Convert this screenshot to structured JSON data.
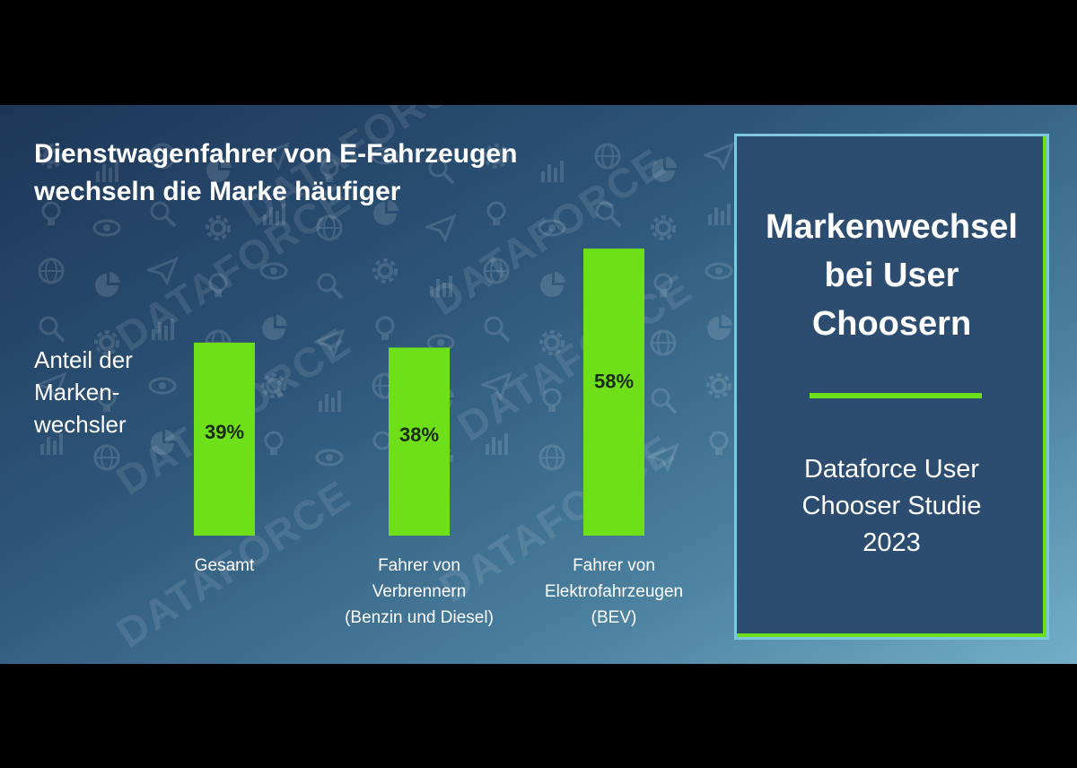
{
  "chart_data": {
    "type": "bar",
    "title": "Dienstwagenfahrer von E-Fahrzeugen wechseln die Marke häufiger",
    "ylabel": "Anteil der Marken-wechsler",
    "categories": [
      "Gesamt",
      "Fahrer von Verbrennern (Benzin und Diesel)",
      "Fahrer von Elektrofahrzeugen (BEV)"
    ],
    "category_lines": [
      [
        "Gesamt"
      ],
      [
        "Fahrer von",
        "Verbrennern",
        "(Benzin und Diesel)"
      ],
      [
        "Fahrer von",
        "Elektrofahrzeugen",
        "(BEV)"
      ]
    ],
    "values": [
      39,
      38,
      58
    ],
    "value_labels": [
      "39%",
      "38%",
      "58%"
    ],
    "unit": "%",
    "ylim": [
      0,
      64
    ],
    "grid": false,
    "legend": "none",
    "bar_color": "#6ee01a"
  },
  "title_lines": [
    "Dienstwagenfahrer von E-Fahrzeugen",
    "wechseln die Marke häufiger"
  ],
  "ylabel_lines": [
    "Anteil der",
    "Marken-",
    "wechsler"
  ],
  "panel": {
    "title_lines": [
      "Markenwechsel",
      "bei User",
      "Choosern"
    ],
    "source_lines": [
      "Dataforce User",
      "Chooser Studie",
      "2023"
    ]
  },
  "watermark": {
    "text": "DATAFORCE"
  },
  "colors": {
    "accent": "#6ee01a",
    "panel_border": "#7ec8df",
    "panel_bg": "#2c4d70",
    "text": "#ffffff",
    "value_text": "#1b2a12"
  }
}
